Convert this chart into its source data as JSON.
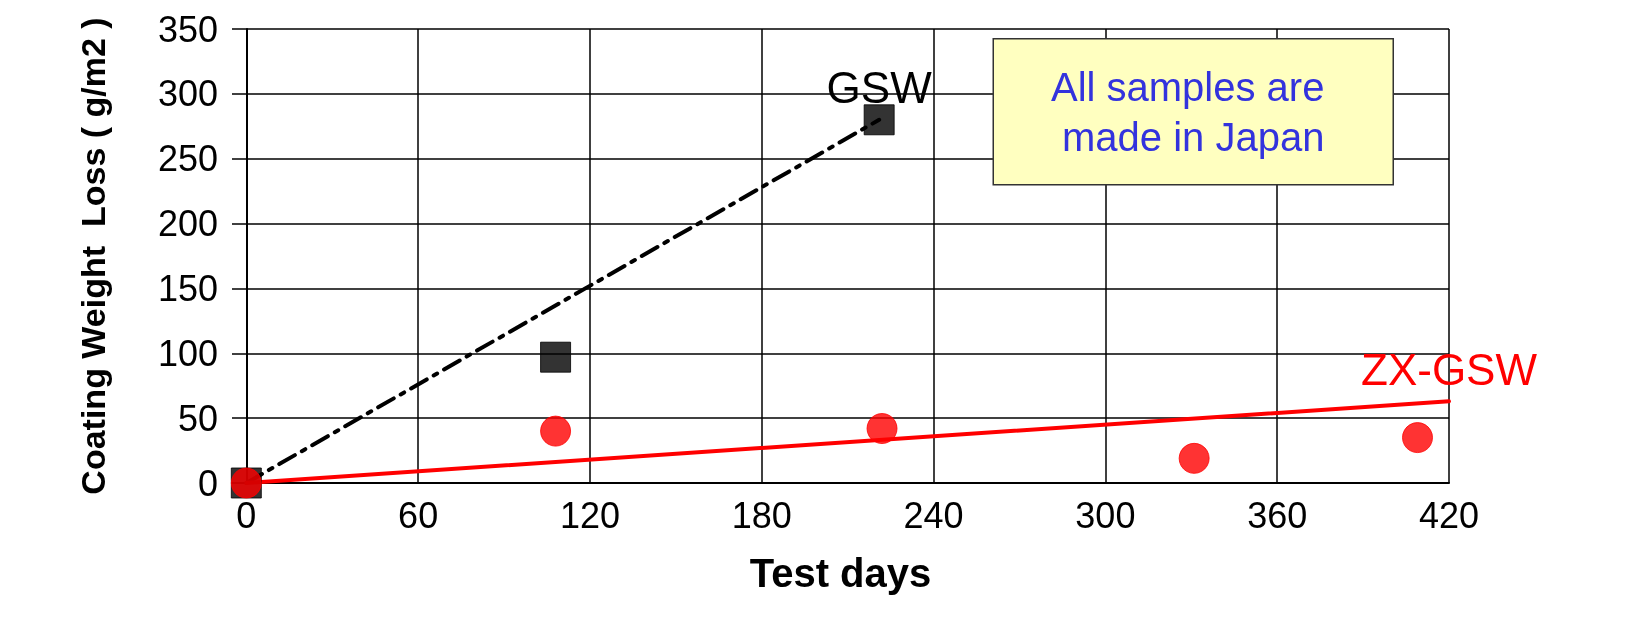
{
  "chart_data": {
    "type": "scatter",
    "xlabel": "Test days",
    "ylabel": "Coating Weight  Loss ( g/m2 )",
    "xlim": [
      -5,
      420
    ],
    "xticks": [
      0,
      60,
      120,
      180,
      240,
      300,
      360,
      420
    ],
    "ylim": [
      0,
      350
    ],
    "yticks": [
      0,
      50,
      100,
      150,
      200,
      250,
      300,
      350
    ],
    "grid": true,
    "legend": false,
    "annotations": [
      "All samples are made in Japan"
    ],
    "series": [
      {
        "color": "#000000",
        "marker": "square",
        "x": [
          0,
          108,
          221
        ],
        "values": [
          0,
          97,
          280
        ]
      },
      {
        "type": "line",
        "name": "GSW",
        "color": "#000000",
        "line_style": "dashed",
        "marker": "none",
        "x": [
          0,
          221
        ],
        "values": [
          0,
          280
        ]
      },
      {
        "color": "#ff0000",
        "marker": "circle",
        "x": [
          0,
          108,
          222,
          331,
          409
        ],
        "values": [
          0,
          40,
          42,
          19,
          35
        ]
      },
      {
        "type": "line",
        "name": "ZX-GSW",
        "color": "#ff0000",
        "line_style": "solid",
        "marker": "none",
        "x": [
          0,
          420
        ],
        "values": [
          0,
          63
        ]
      }
    ]
  }
}
